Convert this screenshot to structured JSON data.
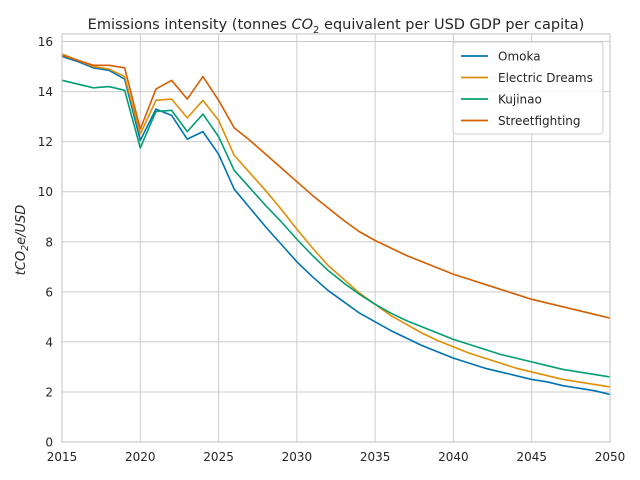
{
  "chart_data": {
    "type": "line",
    "title": "Emissions intensity (tonnes CO₂ equivalent per USD GDP per capita)",
    "title_parts": {
      "before": "Emissions intensity (tonnes ",
      "formula_main": "CO",
      "formula_sub": "2",
      "after": " equivalent per USD GDP per capita)"
    },
    "xlabel": "",
    "ylabel": "tCO₂e/USD",
    "ylabel_parts": {
      "a": "tCO",
      "sub": "2",
      "b": "e/USD"
    },
    "xlim": [
      2015,
      2050
    ],
    "ylim": [
      0,
      16.3
    ],
    "xticks": [
      2015,
      2020,
      2025,
      2030,
      2035,
      2040,
      2045,
      2050
    ],
    "yticks": [
      0,
      2,
      4,
      6,
      8,
      10,
      12,
      14,
      16
    ],
    "grid": true,
    "legend_position": "top-right",
    "x": [
      2015,
      2016,
      2017,
      2018,
      2019,
      2020,
      2021,
      2022,
      2023,
      2024,
      2025,
      2026,
      2027,
      2028,
      2029,
      2030,
      2031,
      2032,
      2033,
      2034,
      2035,
      2036,
      2037,
      2038,
      2039,
      2040,
      2041,
      2042,
      2043,
      2044,
      2045,
      2046,
      2047,
      2048,
      2049,
      2050
    ],
    "series": [
      {
        "name": "Omoka",
        "color": "#0173b2",
        "values": [
          15.4,
          15.2,
          14.95,
          14.85,
          14.5,
          12.05,
          13.3,
          13.05,
          12.1,
          12.4,
          11.5,
          10.1,
          9.35,
          8.6,
          7.9,
          7.2,
          6.6,
          6.05,
          5.6,
          5.15,
          4.8,
          4.45,
          4.15,
          3.85,
          3.6,
          3.35,
          3.15,
          2.95,
          2.8,
          2.65,
          2.5,
          2.4,
          2.25,
          2.15,
          2.05,
          1.9
        ]
      },
      {
        "name": "Electric Dreams",
        "color": "#de8f05",
        "values": [
          15.5,
          15.25,
          15.0,
          14.9,
          14.6,
          12.3,
          13.65,
          13.7,
          12.95,
          13.65,
          12.85,
          11.45,
          10.75,
          10.05,
          9.3,
          8.5,
          7.75,
          7.05,
          6.5,
          5.95,
          5.5,
          5.05,
          4.7,
          4.35,
          4.05,
          3.8,
          3.55,
          3.35,
          3.15,
          2.95,
          2.8,
          2.65,
          2.5,
          2.4,
          2.3,
          2.2
        ]
      },
      {
        "name": "Kujinao",
        "color": "#029e73",
        "values": [
          14.45,
          14.3,
          14.15,
          14.2,
          14.05,
          11.75,
          13.2,
          13.25,
          12.4,
          13.1,
          12.2,
          10.85,
          10.15,
          9.45,
          8.8,
          8.1,
          7.45,
          6.85,
          6.35,
          5.9,
          5.5,
          5.15,
          4.85,
          4.6,
          4.35,
          4.1,
          3.9,
          3.7,
          3.5,
          3.35,
          3.2,
          3.05,
          2.9,
          2.8,
          2.7,
          2.6
        ]
      },
      {
        "name": "Streetfighting",
        "color": "#d55e00",
        "values": [
          15.45,
          15.25,
          15.05,
          15.05,
          14.95,
          12.5,
          14.1,
          14.45,
          13.7,
          14.6,
          13.65,
          12.55,
          12.05,
          11.5,
          10.95,
          10.4,
          9.85,
          9.35,
          8.85,
          8.4,
          8.05,
          7.75,
          7.45,
          7.2,
          6.95,
          6.7,
          6.5,
          6.3,
          6.1,
          5.9,
          5.7,
          5.55,
          5.4,
          5.25,
          5.1,
          4.95
        ]
      }
    ]
  }
}
